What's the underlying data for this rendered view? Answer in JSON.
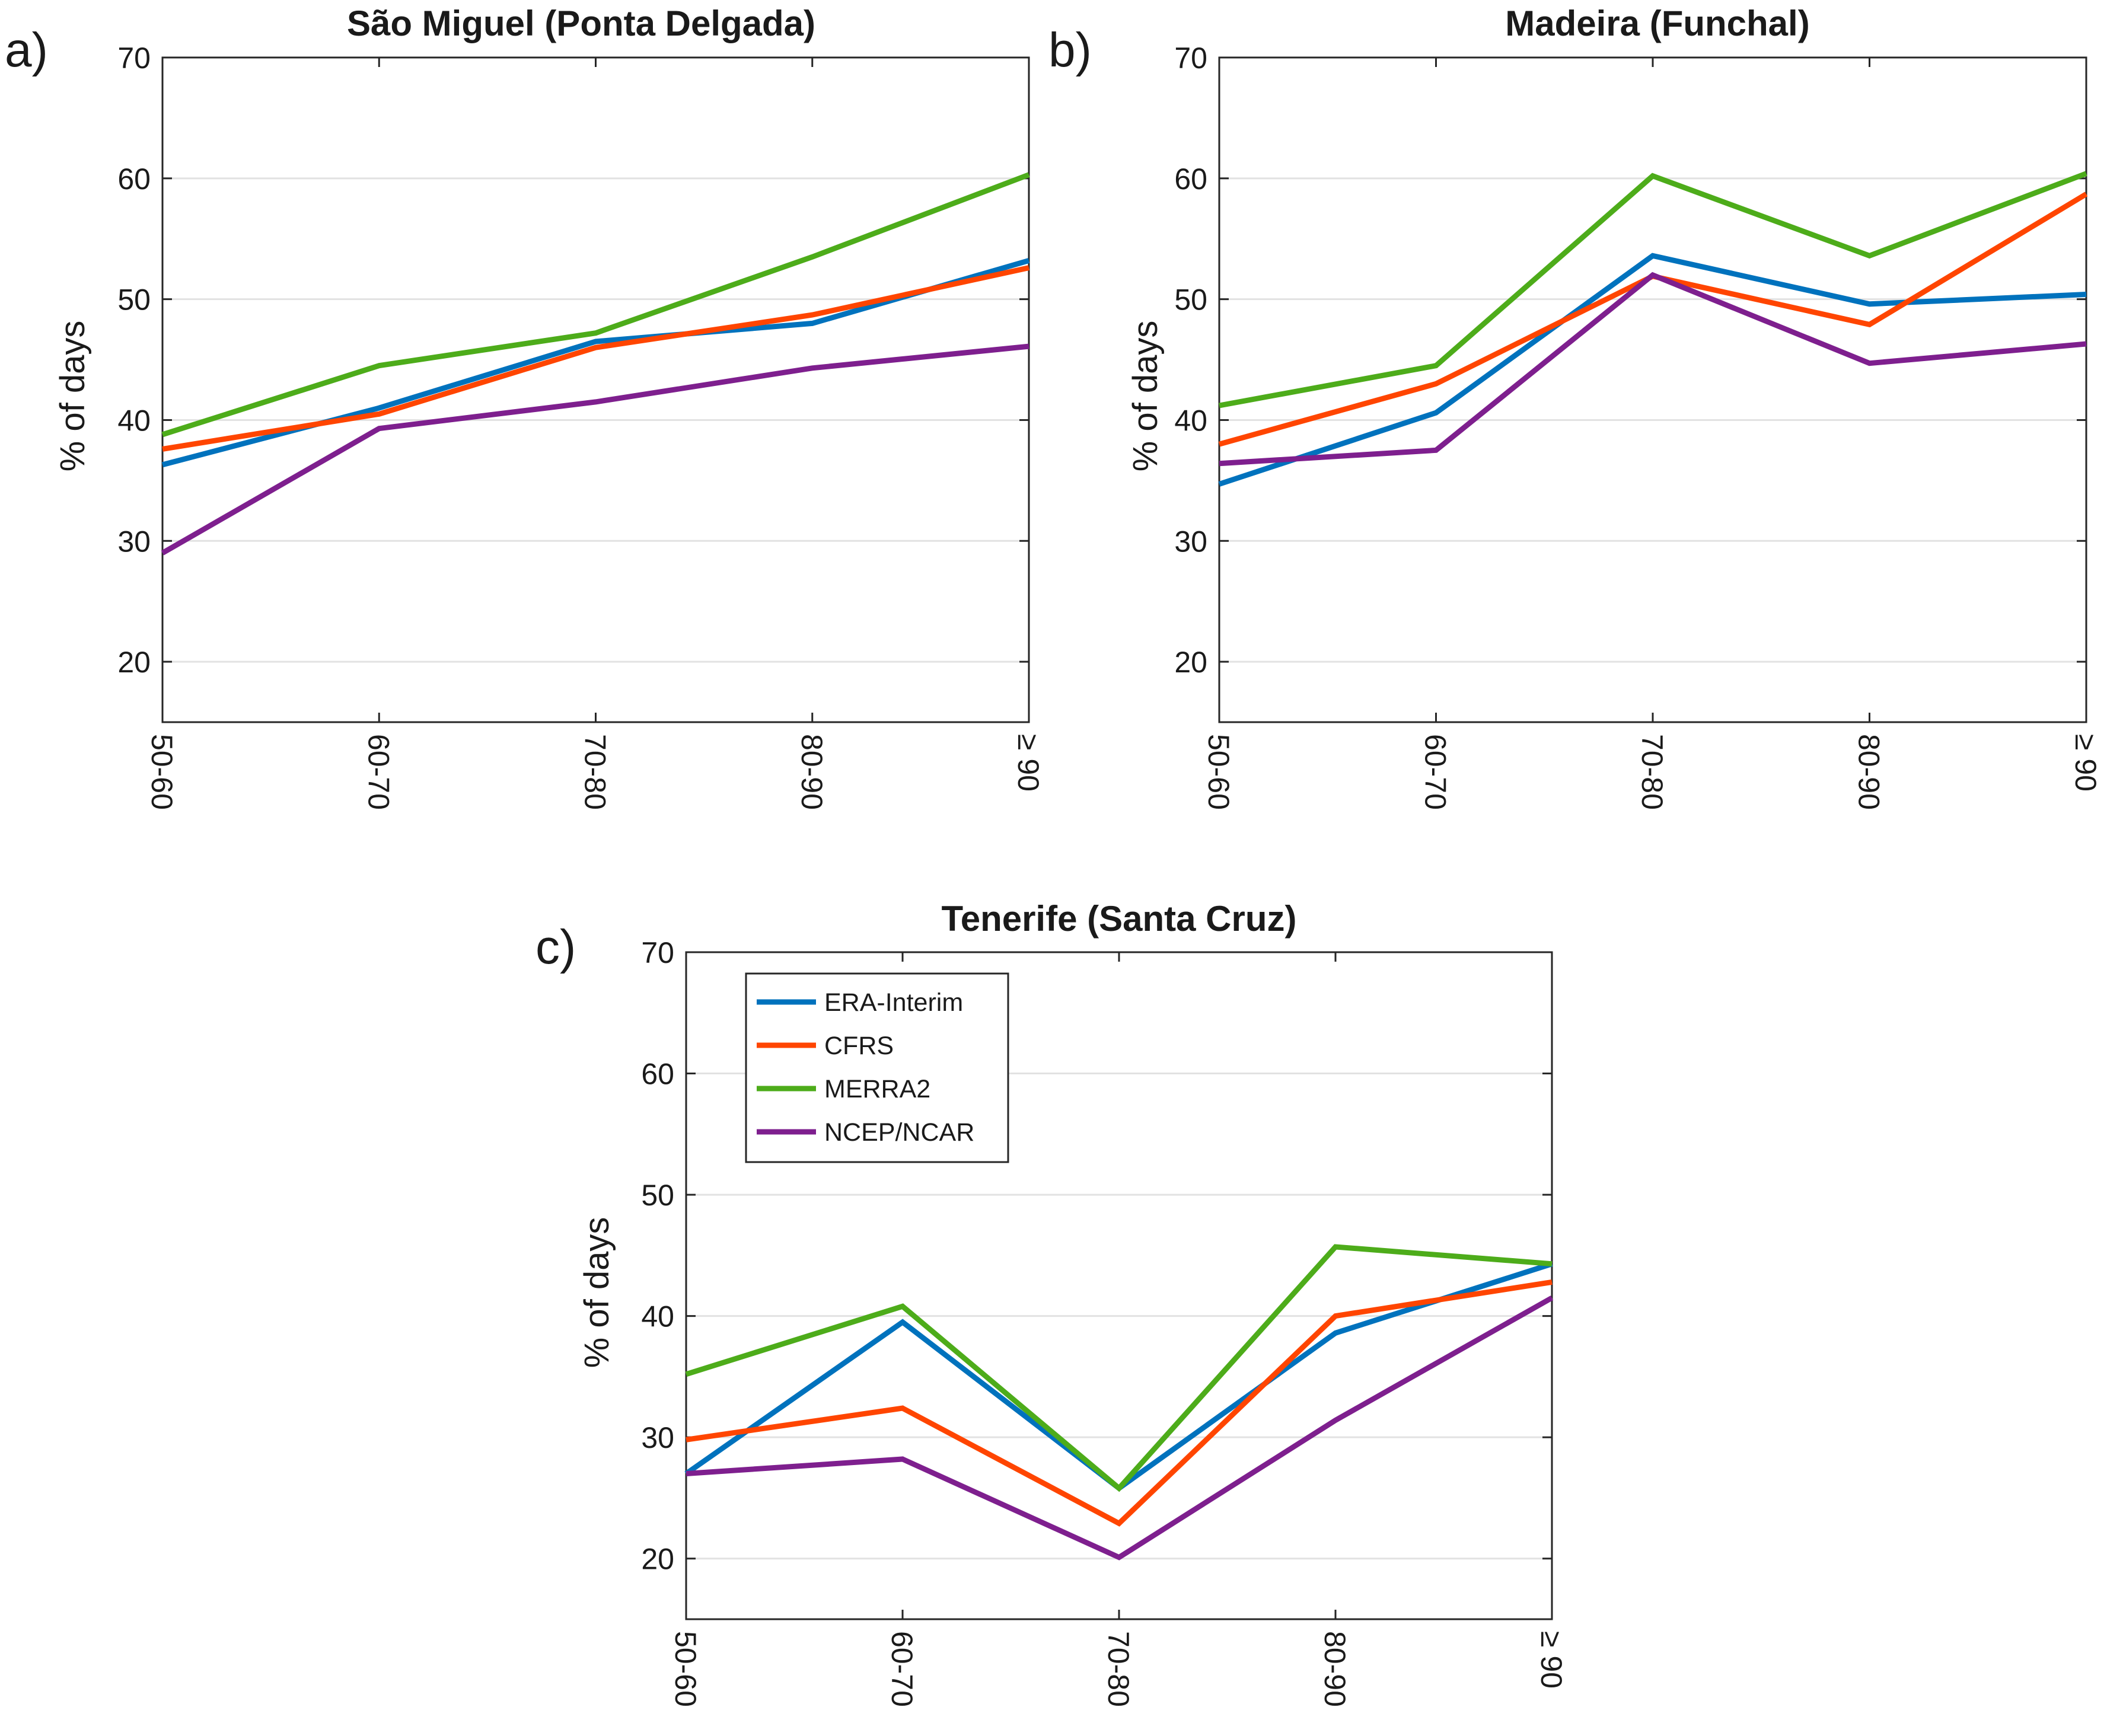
{
  "colors": {
    "ERA-Interim": "#0072BD",
    "CFRS": "#FF4500",
    "MERRA2": "#4DAC1A",
    "NCEP/NCAR": "#7E1F8E",
    "grid": "#e2e2e2",
    "axis": "#262626"
  },
  "chart_data": [
    {
      "type": "line",
      "panel_label": "a)",
      "title": "São Miguel (Ponta Delgada)",
      "xlabel": "",
      "ylabel": "% of days",
      "ylim": [
        15,
        70
      ],
      "yticks": [
        20,
        30,
        40,
        50,
        60,
        70
      ],
      "grid": true,
      "categories": [
        "50-60",
        "60-70",
        "70-80",
        "80-90",
        "≥ 90"
      ],
      "series": [
        {
          "name": "ERA-Interim",
          "values": [
            36.3,
            41.0,
            46.5,
            48.0,
            53.2
          ]
        },
        {
          "name": "CFRS",
          "values": [
            37.6,
            40.5,
            46.0,
            48.7,
            52.6
          ]
        },
        {
          "name": "MERRA2",
          "values": [
            38.8,
            44.5,
            47.2,
            53.5,
            60.3
          ]
        },
        {
          "name": "NCEP/NCAR",
          "values": [
            29.0,
            39.3,
            41.5,
            44.3,
            46.1
          ]
        }
      ]
    },
    {
      "type": "line",
      "panel_label": "b)",
      "title": "Madeira (Funchal)",
      "xlabel": "",
      "ylabel": "% of days",
      "ylim": [
        15,
        70
      ],
      "yticks": [
        20,
        30,
        40,
        50,
        60,
        70
      ],
      "grid": true,
      "categories": [
        "50-60",
        "60-70",
        "70-80",
        "80-90",
        "≥ 90"
      ],
      "series": [
        {
          "name": "ERA-Interim",
          "values": [
            34.7,
            40.6,
            53.6,
            49.6,
            50.4
          ]
        },
        {
          "name": "CFRS",
          "values": [
            38.0,
            43.0,
            51.9,
            47.9,
            58.7
          ]
        },
        {
          "name": "MERRA2",
          "values": [
            41.2,
            44.5,
            60.2,
            53.6,
            60.4
          ]
        },
        {
          "name": "NCEP/NCAR",
          "values": [
            36.4,
            37.5,
            52.0,
            44.7,
            46.3
          ]
        }
      ]
    },
    {
      "type": "line",
      "panel_label": "c)",
      "title": "Tenerife (Santa Cruz)",
      "xlabel": "",
      "ylabel": "% of days",
      "ylim": [
        15,
        70
      ],
      "yticks": [
        20,
        30,
        40,
        50,
        60,
        70
      ],
      "grid": true,
      "legend": "top-left",
      "categories": [
        "50-60",
        "60-70",
        "70-80",
        "80-90",
        "≥ 90"
      ],
      "series": [
        {
          "name": "ERA-Interim",
          "values": [
            27.0,
            39.5,
            25.8,
            38.6,
            44.3
          ]
        },
        {
          "name": "CFRS",
          "values": [
            29.8,
            32.4,
            22.9,
            40.0,
            42.8
          ]
        },
        {
          "name": "MERRA2",
          "values": [
            35.2,
            40.8,
            25.8,
            45.7,
            44.3
          ]
        },
        {
          "name": "NCEP/NCAR",
          "values": [
            27.0,
            28.2,
            20.1,
            31.4,
            41.5
          ]
        }
      ]
    }
  ]
}
